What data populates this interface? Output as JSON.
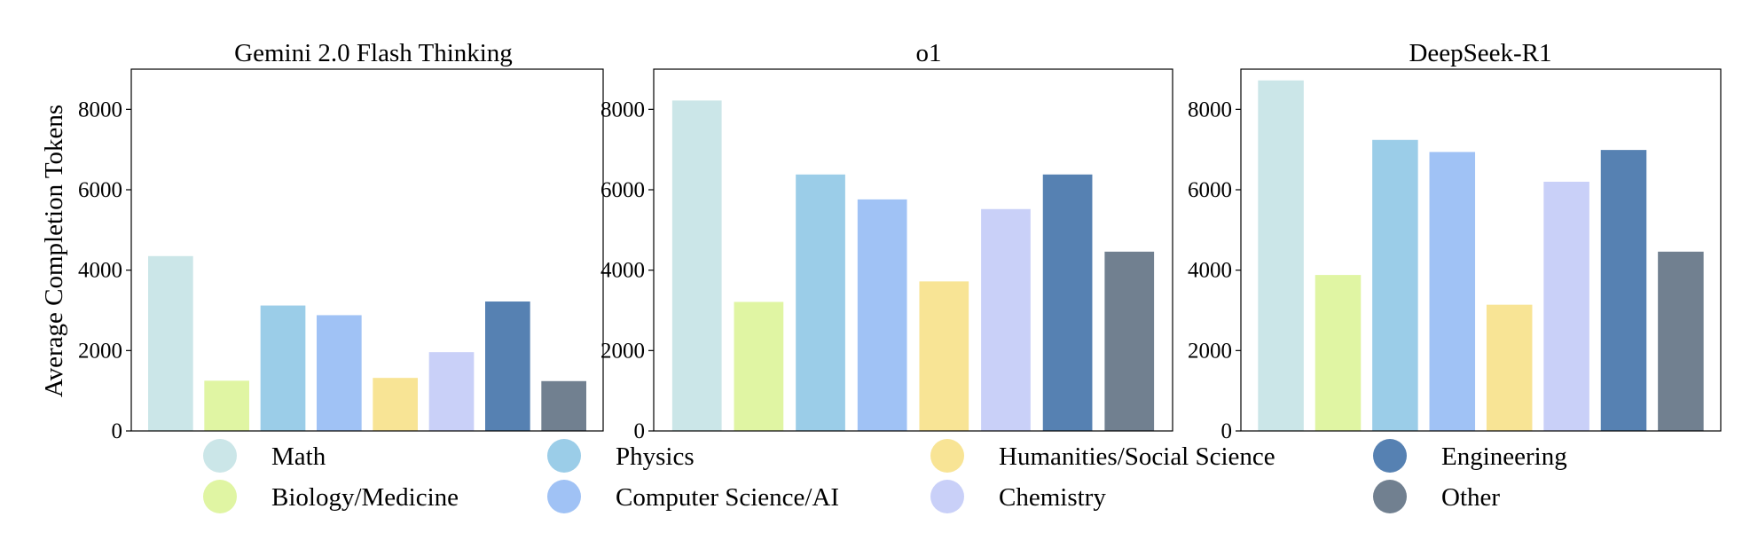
{
  "chart_data": {
    "type": "bar",
    "ylabel": "Average Completion Tokens",
    "ylim": [
      0,
      9000
    ],
    "yticks": [
      0,
      2000,
      4000,
      6000,
      8000
    ],
    "grid": false,
    "legend_placement": "bottom",
    "categories": [
      "Math",
      "Biology/Medicine",
      "Physics",
      "Computer Science/AI",
      "Humanities/Social Science",
      "Chemistry",
      "Engineering",
      "Other"
    ],
    "colors": [
      "#cbe6e8",
      "#e0f5a3",
      "#9bcde8",
      "#a0c2f5",
      "#f8e495",
      "#c9d0f8",
      "#5681b2",
      "#718090"
    ],
    "legend": {
      "order": [
        "Math",
        "Physics",
        "Humanities/Social Science",
        "Engineering",
        "Biology/Medicine",
        "Computer Science/AI",
        "Chemistry",
        "Other"
      ]
    },
    "panels": [
      {
        "title": "Gemini 2.0 Flash Thinking",
        "values": [
          4350,
          1250,
          3120,
          2880,
          1320,
          1960,
          3220,
          1240
        ]
      },
      {
        "title": "o1",
        "values": [
          8220,
          3210,
          6380,
          5760,
          3720,
          5520,
          6380,
          4460
        ]
      },
      {
        "title": "DeepSeek-R1",
        "values": [
          8720,
          3880,
          7240,
          6940,
          3140,
          6200,
          6990,
          4460
        ]
      }
    ]
  }
}
